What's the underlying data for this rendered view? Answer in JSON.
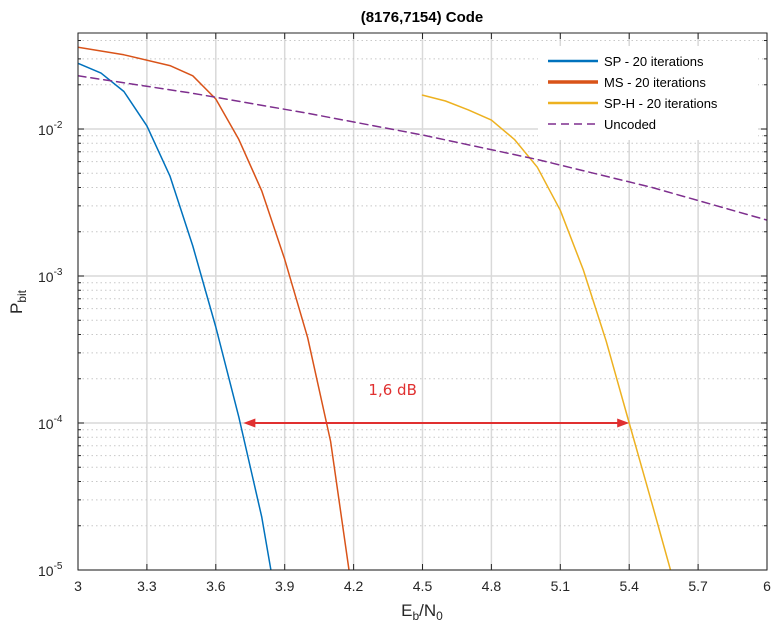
{
  "chart_data": {
    "type": "line",
    "title": "(8176,7154) Code",
    "xlabel": {
      "main": "E",
      "sub1": "b",
      "mid": "/N",
      "sub2": "0"
    },
    "ylabel": {
      "main": "P",
      "sub": "bit"
    },
    "xlim": [
      3,
      6
    ],
    "ylim": [
      1e-05,
      0.045
    ],
    "yscale": "log",
    "grid": true,
    "legend_position": "top-right",
    "x_ticks": [
      "3",
      "3.3",
      "3.6",
      "3.9",
      "4.2",
      "4.5",
      "4.8",
      "5.1",
      "5.4",
      "5.7",
      "6"
    ],
    "y_ticks": [
      {
        "base": "10",
        "exp": "-5",
        "value": 1e-05
      },
      {
        "base": "10",
        "exp": "-4",
        "value": 0.0001
      },
      {
        "base": "10",
        "exp": "-3",
        "value": 0.001
      },
      {
        "base": "10",
        "exp": "-2",
        "value": 0.01
      }
    ],
    "series": [
      {
        "name": "SP - 20 iterations",
        "color": "#0072BD",
        "style": "solid",
        "width": 1.5,
        "legend_width": 2.5,
        "x": [
          3.0,
          3.1,
          3.2,
          3.3,
          3.4,
          3.5,
          3.6,
          3.7,
          3.8,
          3.84
        ],
        "y": [
          0.028,
          0.024,
          0.018,
          0.0105,
          0.0048,
          0.0016,
          0.00045,
          0.00011,
          2.3e-05,
          1e-05
        ]
      },
      {
        "name": "MS - 20 iterations",
        "color": "#D95319",
        "style": "solid",
        "width": 1.5,
        "legend_width": 3.5,
        "x": [
          3.0,
          3.2,
          3.4,
          3.5,
          3.6,
          3.7,
          3.8,
          3.9,
          4.0,
          4.1,
          4.18
        ],
        "y": [
          0.036,
          0.032,
          0.027,
          0.023,
          0.016,
          0.0085,
          0.0038,
          0.0013,
          0.00038,
          7.5e-05,
          1e-05
        ]
      },
      {
        "name": "SP-H - 20 iterations",
        "color": "#EDB120",
        "style": "solid",
        "width": 1.5,
        "legend_width": 2.5,
        "x": [
          4.5,
          4.6,
          4.7,
          4.8,
          4.9,
          5.0,
          5.1,
          5.2,
          5.3,
          5.4,
          5.5,
          5.58
        ],
        "y": [
          0.017,
          0.0155,
          0.0135,
          0.0115,
          0.0085,
          0.0055,
          0.0028,
          0.0011,
          0.00036,
          0.0001,
          2.8e-05,
          1e-05
        ]
      },
      {
        "name": "Uncoded",
        "color": "#7E2F8E",
        "style": "dashed",
        "width": 1.5,
        "legend_width": 1.5,
        "x": [
          3.0,
          3.5,
          4.0,
          4.5,
          5.0,
          5.5,
          6.0
        ],
        "y": [
          0.023,
          0.0175,
          0.0128,
          0.0091,
          0.0062,
          0.004,
          0.0024
        ]
      }
    ],
    "annotations": [
      {
        "text": "1,6 dB",
        "color": "#E03030",
        "x1": 3.72,
        "x2": 5.4,
        "y": 0.0001,
        "text_x": 4.37,
        "text_y": 0.00017
      }
    ]
  }
}
